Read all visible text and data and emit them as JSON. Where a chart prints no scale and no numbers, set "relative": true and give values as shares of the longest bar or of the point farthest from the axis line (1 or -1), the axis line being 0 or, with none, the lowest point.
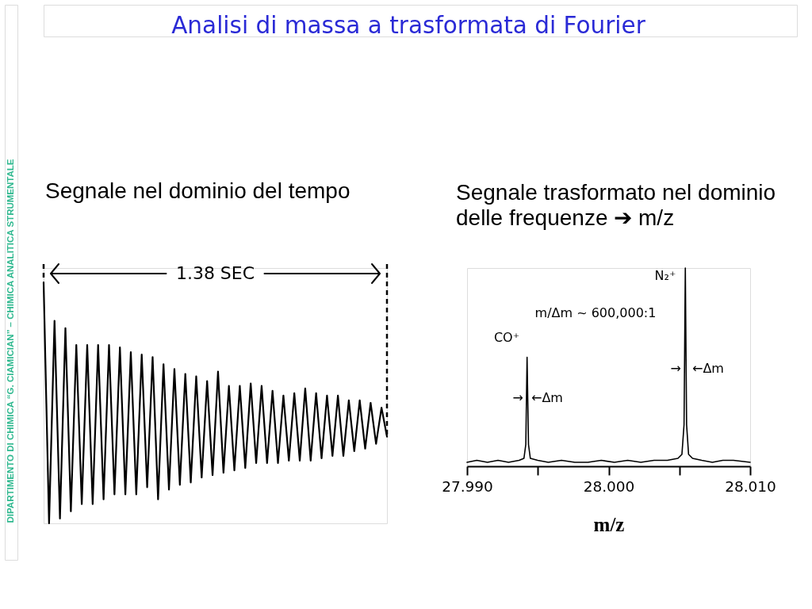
{
  "chart_data": [
    {
      "type": "other",
      "title": "Analisi di massa a trasformata di Fourier",
      "annotations": [
        "DIPARTIMENTO DI CHIMICA “G. CIAMICIAN” – CHIMICA ANALITICA STRUMENTALE"
      ]
    },
    {
      "type": "line",
      "title": "Segnale nel dominio del tempo",
      "relative": true,
      "color": "#000000",
      "categories": [
        null,
        null,
        null,
        null,
        null,
        null,
        null,
        null,
        null,
        null,
        null,
        null,
        null,
        null,
        null,
        null,
        null,
        null,
        null,
        null,
        null,
        null,
        null,
        null,
        null,
        null,
        null,
        null,
        null,
        null,
        null,
        null,
        null,
        null,
        null,
        null,
        null,
        null,
        null,
        null,
        null,
        null,
        null,
        null,
        null,
        null,
        null,
        null,
        null,
        null,
        null,
        null,
        null,
        null,
        null,
        null,
        null,
        null,
        null,
        null,
        null,
        null,
        null,
        null
      ],
      "values": [
        1,
        0,
        0.84,
        0.02,
        0.81,
        0.05,
        0.74,
        0.08,
        0.74,
        0.08,
        0.74,
        0.1,
        0.74,
        0.12,
        0.73,
        0.12,
        0.71,
        0.12,
        0.7,
        0.15,
        0.69,
        0.1,
        0.66,
        0.14,
        0.64,
        0.16,
        0.62,
        0.17,
        0.61,
        0.19,
        0.59,
        0.2,
        0.63,
        0.21,
        0.57,
        0.22,
        0.57,
        0.23,
        0.58,
        0.25,
        0.57,
        0.25,
        0.55,
        0.25,
        0.53,
        0.26,
        0.54,
        0.26,
        0.56,
        0.26,
        0.54,
        0.27,
        0.53,
        0.28,
        0.53,
        0.28,
        0.51,
        0.3,
        0.51,
        0.31,
        0.5,
        0.33,
        0.48,
        0.36
      ],
      "annotations": [
        "1.38 SEC"
      ]
    },
    {
      "type": "line",
      "title": "Segnale trasformato nel dominio\ndelle frequenze ➔ m/z",
      "relative": true,
      "color": "#000000",
      "x": [
        27.99,
        27.99069,
        27.99144,
        27.99219,
        27.99293,
        27.99368,
        27.99402,
        27.99415,
        27.99424,
        27.99434,
        27.99447,
        27.99499,
        27.99574,
        27.99667,
        27.99761,
        27.99854,
        27.99948,
        28.00041,
        28.00135,
        28.00228,
        28.00321,
        28.00415,
        28.0049,
        28.00518,
        28.00533,
        28.00542,
        28.00551,
        28.00565,
        28.00593,
        28.00658,
        28.00733,
        28.00807,
        28.00882,
        28.01
      ],
      "values": [
        0.02,
        0.03,
        0.02,
        0.03,
        0.02,
        0.03,
        0.04,
        0.11,
        0.55,
        0.11,
        0.04,
        0.03,
        0.02,
        0.03,
        0.02,
        0.02,
        0.03,
        0.02,
        0.03,
        0.02,
        0.03,
        0.03,
        0.04,
        0.06,
        0.21,
        1,
        0.21,
        0.06,
        0.04,
        0.03,
        0.02,
        0.03,
        0.03,
        0.02
      ],
      "xlim": [
        27.99,
        28.01
      ],
      "xticks": [
        {
          "value": 27.99,
          "label": "27.990"
        },
        {
          "value": 27.995,
          "label": null
        },
        {
          "value": 28.0,
          "label": "28.000"
        },
        {
          "value": 28.005,
          "label": null
        },
        {
          "value": 28.01,
          "label": "28.010"
        }
      ],
      "xlabel": "m/z",
      "annotations": [
        "CO⁺",
        "N₂⁺",
        "m/Δm ~ 600,000:1",
        "→",
        "←Δm",
        "→",
        "←Δm"
      ]
    }
  ]
}
